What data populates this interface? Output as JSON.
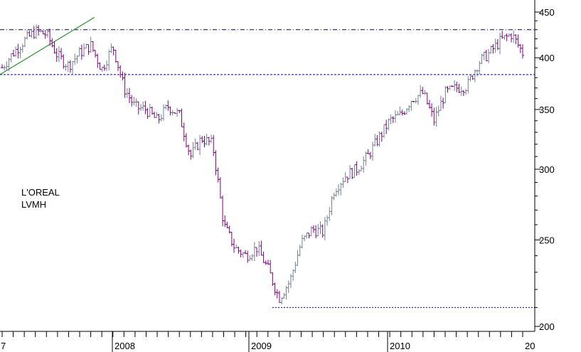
{
  "chart_data": {
    "type": "ohlc",
    "title": "",
    "legend": [
      "L'OREAL",
      "LVMH"
    ],
    "y_axis": {
      "scale": "log",
      "ylim": [
        195,
        460
      ],
      "ticks": [
        200,
        250,
        300,
        350,
        400,
        450
      ],
      "tick_labels": [
        "200",
        "250",
        "300",
        "350",
        "400",
        "450"
      ]
    },
    "x_axis": {
      "tick_labels": [
        "7",
        "2008",
        "2009",
        "2010",
        "20"
      ]
    },
    "reference_lines": [
      {
        "name": "resistance",
        "value": 430,
        "style": "dash-dot"
      },
      {
        "name": "support",
        "value": 383,
        "style": "dotted"
      },
      {
        "name": "low",
        "value": 210,
        "style": "dotted"
      }
    ],
    "trendline": {
      "from": {
        "x": "2007-01",
        "y": 383
      },
      "to": {
        "x": "2007-10",
        "y": 440
      }
    },
    "colors": {
      "up": "#708090",
      "down": "#800080",
      "trendline": "#008000",
      "support": "#0000a0",
      "resistance": "#000080",
      "low": "#000080"
    },
    "series_close": [
      {
        "x": "2007-01",
        "close": 390
      },
      {
        "x": "2007-02",
        "close": 405
      },
      {
        "x": "2007-03",
        "close": 418
      },
      {
        "x": "2007-04",
        "close": 428
      },
      {
        "x": "2007-05",
        "close": 425
      },
      {
        "x": "2007-06",
        "close": 402
      },
      {
        "x": "2007-07",
        "close": 392
      },
      {
        "x": "2007-08",
        "close": 405
      },
      {
        "x": "2007-09",
        "close": 413
      },
      {
        "x": "2007-10",
        "close": 388
      },
      {
        "x": "2007-11",
        "close": 412
      },
      {
        "x": "2007-12",
        "close": 370
      },
      {
        "x": "2008-01",
        "close": 352
      },
      {
        "x": "2008-02",
        "close": 350
      },
      {
        "x": "2008-03",
        "close": 340
      },
      {
        "x": "2008-04",
        "close": 353
      },
      {
        "x": "2008-05",
        "close": 345
      },
      {
        "x": "2008-06",
        "close": 310
      },
      {
        "x": "2008-07",
        "close": 325
      },
      {
        "x": "2008-08",
        "close": 320
      },
      {
        "x": "2008-09",
        "close": 260
      },
      {
        "x": "2008-10",
        "close": 245
      },
      {
        "x": "2008-11",
        "close": 240
      },
      {
        "x": "2008-12",
        "close": 245
      },
      {
        "x": "2009-01",
        "close": 232
      },
      {
        "x": "2009-02",
        "close": 215
      },
      {
        "x": "2009-03",
        "close": 225
      },
      {
        "x": "2009-04",
        "close": 248
      },
      {
        "x": "2009-05",
        "close": 257
      },
      {
        "x": "2009-06",
        "close": 255
      },
      {
        "x": "2009-07",
        "close": 285
      },
      {
        "x": "2009-08",
        "close": 295
      },
      {
        "x": "2009-09",
        "close": 300
      },
      {
        "x": "2009-10",
        "close": 310
      },
      {
        "x": "2009-11",
        "close": 325
      },
      {
        "x": "2009-12",
        "close": 340
      },
      {
        "x": "2010-01",
        "close": 345
      },
      {
        "x": "2010-02",
        "close": 360
      },
      {
        "x": "2010-03",
        "close": 365
      },
      {
        "x": "2010-04",
        "close": 340
      },
      {
        "x": "2010-05",
        "close": 365
      },
      {
        "x": "2010-06",
        "close": 370
      },
      {
        "x": "2010-07",
        "close": 372
      },
      {
        "x": "2010-08",
        "close": 395
      },
      {
        "x": "2010-09",
        "close": 405
      },
      {
        "x": "2010-10",
        "close": 418
      },
      {
        "x": "2010-11",
        "close": 425
      },
      {
        "x": "2010-12",
        "close": 405
      }
    ]
  }
}
